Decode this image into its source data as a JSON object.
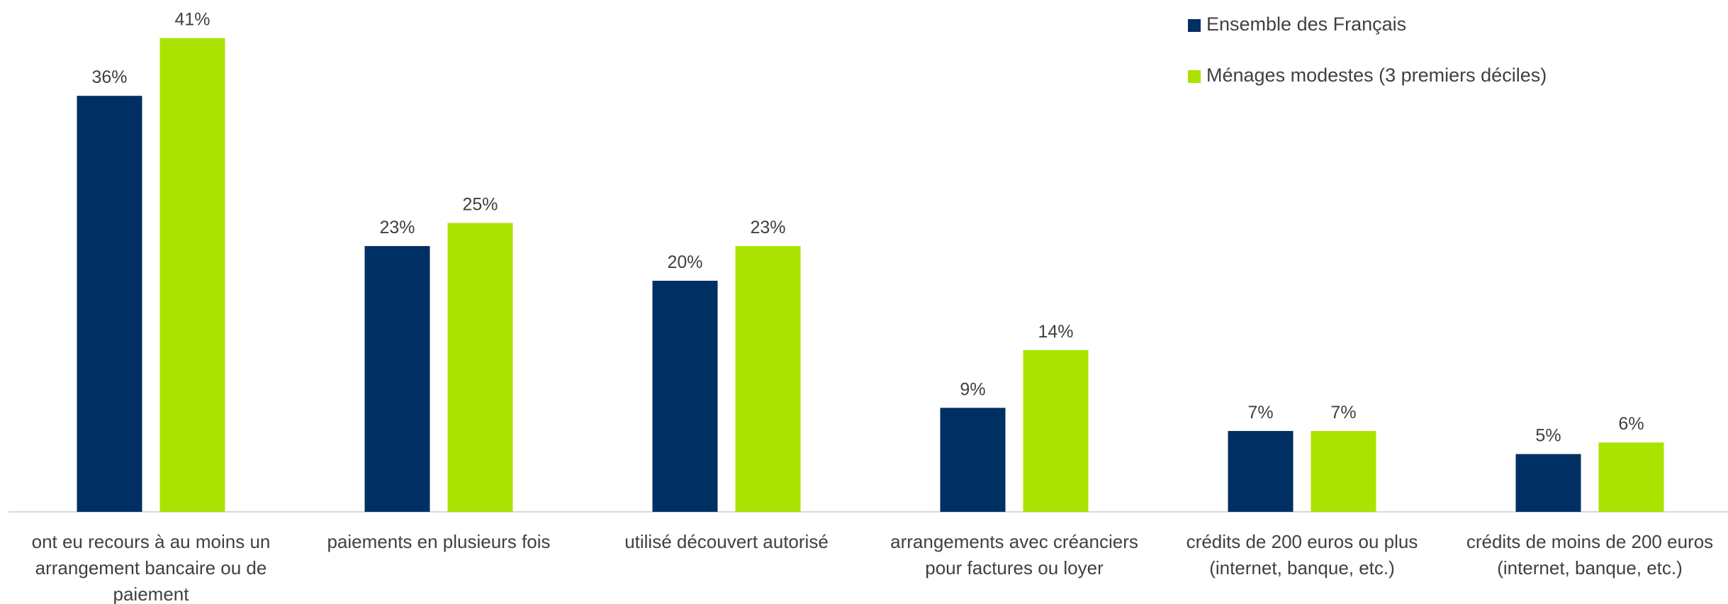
{
  "chart_data": {
    "type": "bar",
    "categories": [
      "ont eu recours à au moins un arrangement bancaire ou de paiement",
      "paiements en plusieurs fois",
      "utilisé  découvert autorisé",
      "arrangements avec  créanciers pour  factures ou loyer",
      "crédits de 200 euros ou plus (internet, banque, etc.)",
      "crédits de moins de 200 euros (internet, banque, etc.)"
    ],
    "series": [
      {
        "name": "Ensemble des Français",
        "color": "#003063",
        "values": [
          36,
          23,
          20,
          9,
          7,
          5
        ],
        "value_labels": [
          "36%",
          "23%",
          "20%",
          "9%",
          "7%",
          "5%"
        ]
      },
      {
        "name": "Ménages modestes (3 premiers déciles)",
        "color": "#abe300",
        "values": [
          41,
          25,
          23,
          14,
          7,
          6
        ],
        "value_labels": [
          "41%",
          "25%",
          "23%",
          "14%",
          "7%",
          "6%"
        ]
      }
    ],
    "legend": "top-right"
  }
}
